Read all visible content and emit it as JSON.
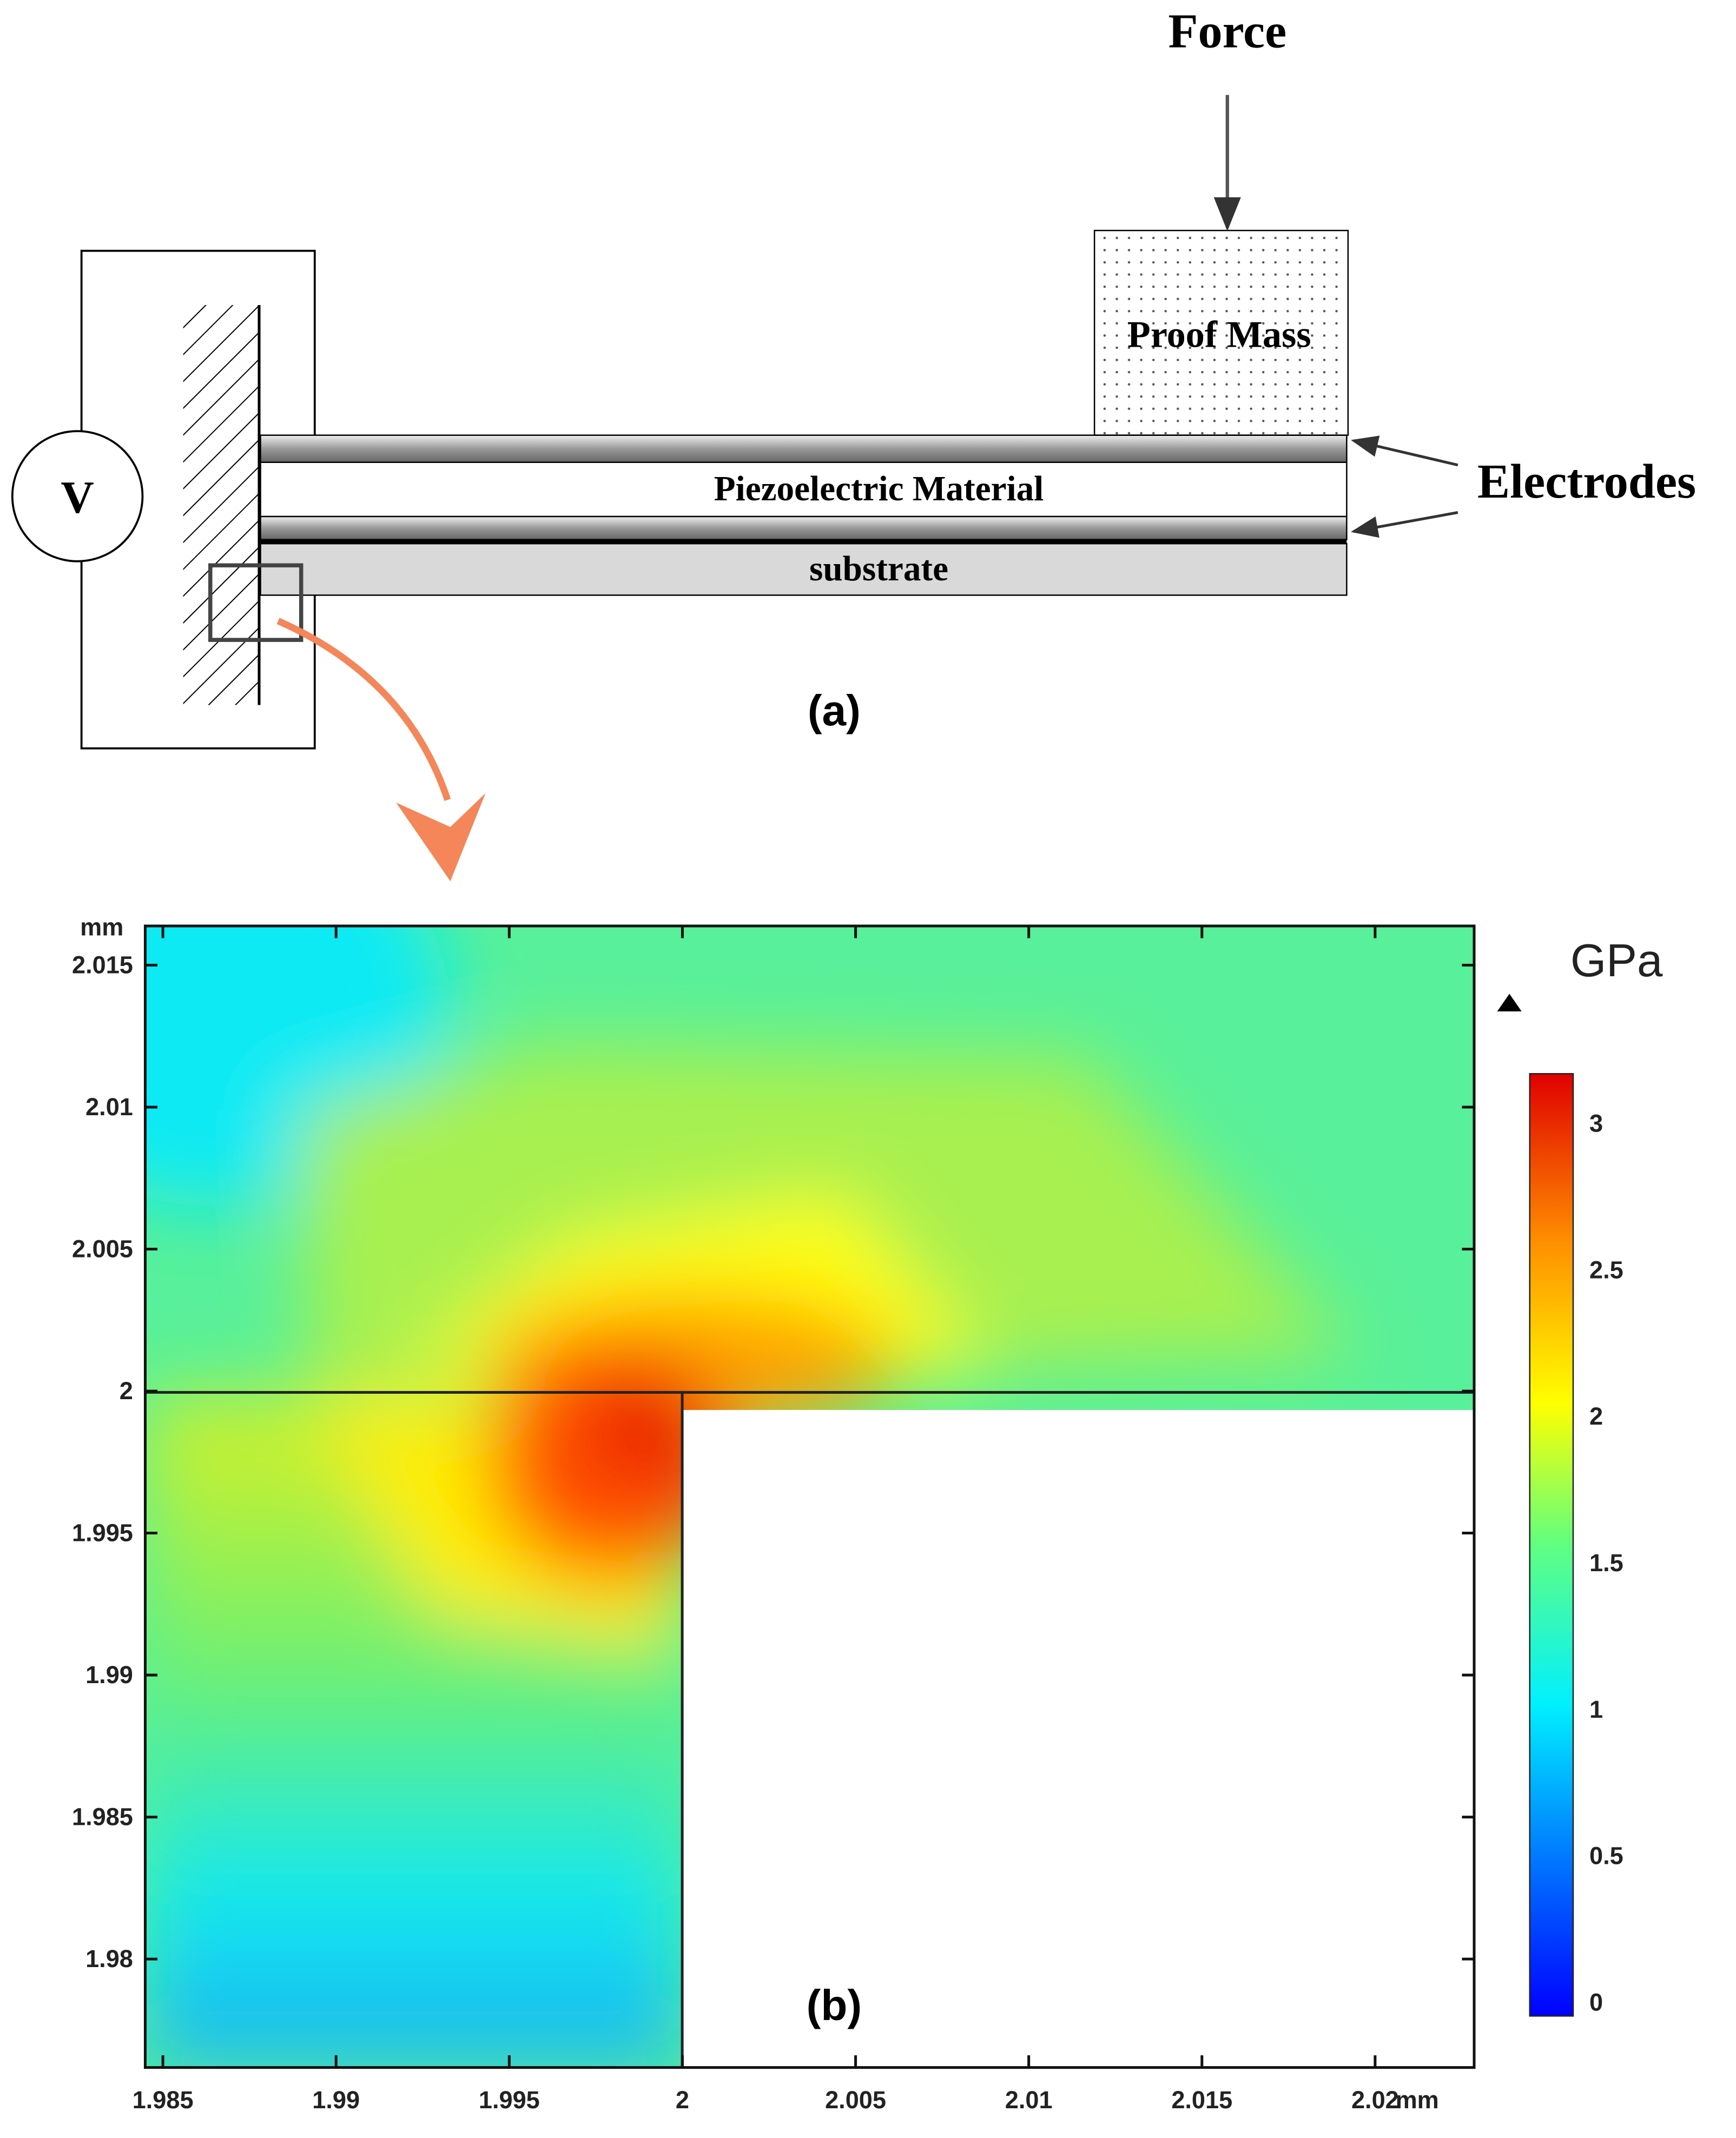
{
  "diagram": {
    "force": "Force",
    "proof_mass": "Proof Mass",
    "electrodes": "Electrodes",
    "piezo": "Piezoelectric Material",
    "substrate": "substrate",
    "voltage": "V",
    "label": "(a)"
  },
  "plot": {
    "label": "(b)",
    "x_unit": "mm",
    "y_unit": "mm",
    "xlim": [
      1.98449,
      2.02286
    ],
    "ylim": [
      1.97618,
      2.01638
    ],
    "xticks": [
      1.985,
      1.99,
      1.995,
      2,
      2.005,
      2.01,
      2.015,
      2.02
    ],
    "yticks": [
      1.98,
      1.985,
      1.99,
      1.995,
      2,
      2.005,
      2.01,
      2.015
    ],
    "colorbar": {
      "unit": "GPa",
      "lim": [
        -0.046,
        3.17
      ],
      "ticks": [
        0,
        0.5,
        1,
        1.5,
        2,
        2.5,
        3
      ]
    }
  }
}
